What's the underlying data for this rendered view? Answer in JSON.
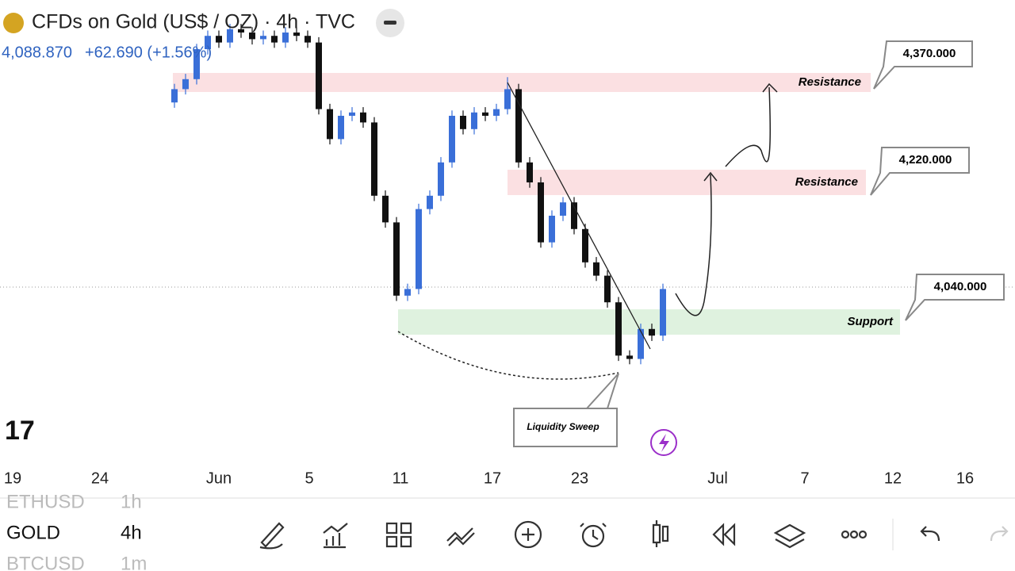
{
  "header": {
    "symbol_title": "CFDs on Gold (US$ / OZ) · 4h · TVC",
    "last_price": "4,088.870",
    "change": "+62.690 (+1.56%)"
  },
  "chart": {
    "candles": [
      [
        4340,
        4368,
        4332,
        4360
      ],
      [
        4360,
        4383,
        4352,
        4375
      ],
      [
        4375,
        4428,
        4367,
        4420
      ],
      [
        4420,
        4448,
        4412,
        4440
      ],
      [
        4440,
        4448,
        4422,
        4430
      ],
      [
        4430,
        4458,
        4422,
        4450
      ],
      [
        4450,
        4458,
        4437,
        4445
      ],
      [
        4445,
        4453,
        4427,
        4435
      ],
      [
        4435,
        4448,
        4427,
        4440
      ],
      [
        4440,
        4448,
        4422,
        4430
      ],
      [
        4430,
        4453,
        4422,
        4445
      ],
      [
        4445,
        4453,
        4432,
        4440
      ],
      [
        4440,
        4448,
        4422,
        4430
      ],
      [
        4430,
        4438,
        4322,
        4330
      ],
      [
        4330,
        4338,
        4277,
        4285
      ],
      [
        4285,
        4328,
        4277,
        4320
      ],
      [
        4320,
        4333,
        4312,
        4325
      ],
      [
        4325,
        4333,
        4302,
        4310
      ],
      [
        4310,
        4318,
        4192,
        4200
      ],
      [
        4200,
        4208,
        4152,
        4160
      ],
      [
        4160,
        4168,
        4042,
        4050
      ],
      [
        4050,
        4068,
        4042,
        4060
      ],
      [
        4060,
        4188,
        4052,
        4180
      ],
      [
        4180,
        4208,
        4172,
        4200
      ],
      [
        4200,
        4258,
        4192,
        4250
      ],
      [
        4250,
        4328,
        4242,
        4320
      ],
      [
        4320,
        4328,
        4292,
        4300
      ],
      [
        4300,
        4333,
        4292,
        4325
      ],
      [
        4325,
        4333,
        4312,
        4320
      ],
      [
        4320,
        4338,
        4312,
        4330
      ],
      [
        4330,
        4378,
        4322,
        4360
      ],
      [
        4360,
        4368,
        4242,
        4250
      ],
      [
        4250,
        4258,
        4212,
        4220
      ],
      [
        4220,
        4228,
        4122,
        4130
      ],
      [
        4130,
        4178,
        4122,
        4170
      ],
      [
        4170,
        4198,
        4162,
        4190
      ],
      [
        4190,
        4198,
        4142,
        4150
      ],
      [
        4150,
        4158,
        4092,
        4100
      ],
      [
        4100,
        4108,
        4072,
        4080
      ],
      [
        4080,
        4088,
        4032,
        4040
      ],
      [
        4040,
        4048,
        3952,
        3960
      ],
      [
        3960,
        3968,
        3947,
        3955
      ],
      [
        3955,
        4008,
        3947,
        4000
      ],
      [
        4000,
        4008,
        3982,
        3990
      ],
      [
        3990,
        4068,
        3982,
        4060
      ]
    ],
    "zone_labels": [
      "Resistance",
      "Resistance",
      "Support"
    ],
    "price_callouts": [
      "4,370.000",
      "4,220.000",
      "4,040.000"
    ],
    "annotation": "Liquidity Sweep",
    "x_axis_labels": [
      "19",
      "24",
      "Jun",
      "5",
      "11",
      "17",
      "23",
      "Jul",
      "7",
      "12",
      "16"
    ]
  },
  "watchlist": [
    {
      "symbol": "ETHUSD",
      "interval": "1h"
    },
    {
      "symbol": "GOLD",
      "interval": "4h"
    },
    {
      "symbol": "BTCUSD",
      "interval": "1m"
    }
  ]
}
